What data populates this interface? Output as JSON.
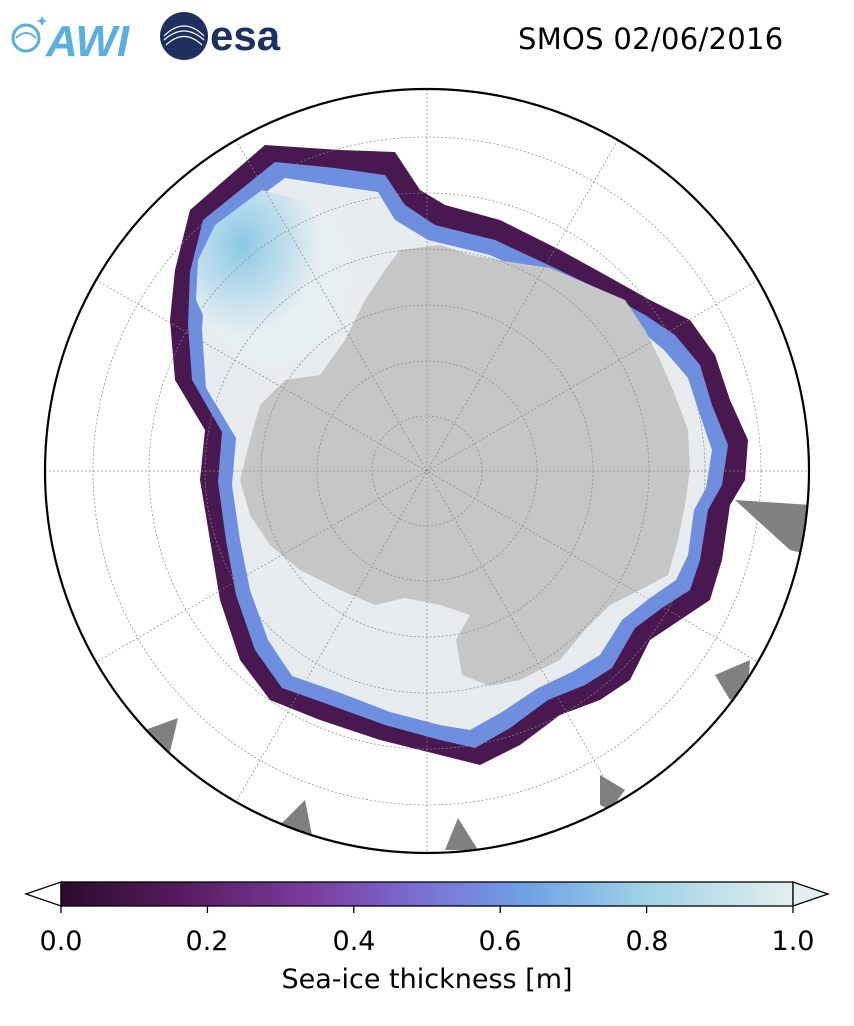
{
  "header": {
    "title": "SMOS 02/06/2016",
    "logos": [
      {
        "name": "AWI",
        "text": "AWI",
        "color": "#5aafe0"
      },
      {
        "name": "esa",
        "text": "esa",
        "color": "#1f3060"
      }
    ]
  },
  "map": {
    "projection": "south-polar-stereographic",
    "variable": "sea-ice thickness",
    "colors": {
      "land": "#c6c6c6",
      "no_data": "#808080",
      "ocean": "#ffffff",
      "grid": "#888888"
    }
  },
  "colorbar": {
    "label": "Sea-ice thickness [m]",
    "min": 0.0,
    "max": 1.0,
    "extend": "both",
    "ticks": [
      "0.0",
      "0.2",
      "0.4",
      "0.6",
      "0.8",
      "1.0"
    ],
    "colormap": [
      "#2b0c2c",
      "#551a5e",
      "#7a3c9c",
      "#7a6ad2",
      "#6fa3e6",
      "#9fd2e6",
      "#e4eeee"
    ]
  }
}
